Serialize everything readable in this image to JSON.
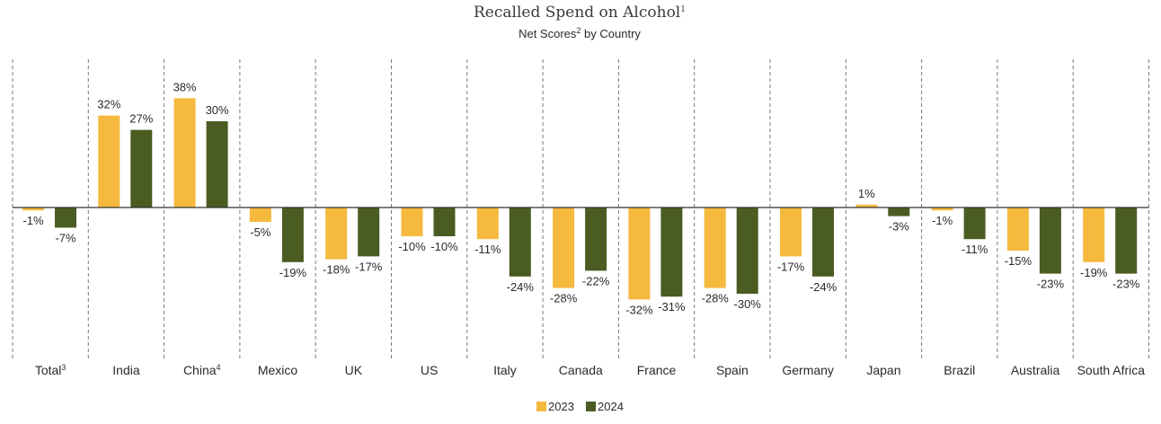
{
  "chart_data": {
    "type": "bar",
    "title": "Recalled Spend on Alcohol",
    "title_sup": "1",
    "subtitle": "Net Scores",
    "subtitle_sup": "2",
    "subtitle_rest": " by Country",
    "categories": [
      {
        "name": "Total",
        "sup": "3"
      },
      {
        "name": "India",
        "sup": ""
      },
      {
        "name": "China",
        "sup": "4"
      },
      {
        "name": "Mexico",
        "sup": ""
      },
      {
        "name": "UK",
        "sup": ""
      },
      {
        "name": "US",
        "sup": ""
      },
      {
        "name": "Italy",
        "sup": ""
      },
      {
        "name": "Canada",
        "sup": ""
      },
      {
        "name": "France",
        "sup": ""
      },
      {
        "name": "Spain",
        "sup": ""
      },
      {
        "name": "Germany",
        "sup": ""
      },
      {
        "name": "Japan",
        "sup": ""
      },
      {
        "name": "Brazil",
        "sup": ""
      },
      {
        "name": "Australia",
        "sup": ""
      },
      {
        "name": "South Africa",
        "sup": ""
      }
    ],
    "series": [
      {
        "name": "2023",
        "color": "#F5B93E",
        "values": [
          -1,
          32,
          38,
          -5,
          -18,
          -10,
          -11,
          -28,
          -32,
          -28,
          -17,
          1,
          -1,
          -15,
          -19
        ]
      },
      {
        "name": "2024",
        "color": "#4B5C22",
        "values": [
          -7,
          27,
          30,
          -19,
          -17,
          -10,
          -24,
          -22,
          -31,
          -30,
          -24,
          -3,
          -11,
          -23,
          -23
        ]
      }
    ],
    "value_suffix": "%",
    "ylim": [
      -40,
      45
    ],
    "grid": false,
    "legend": "bottom-center"
  }
}
